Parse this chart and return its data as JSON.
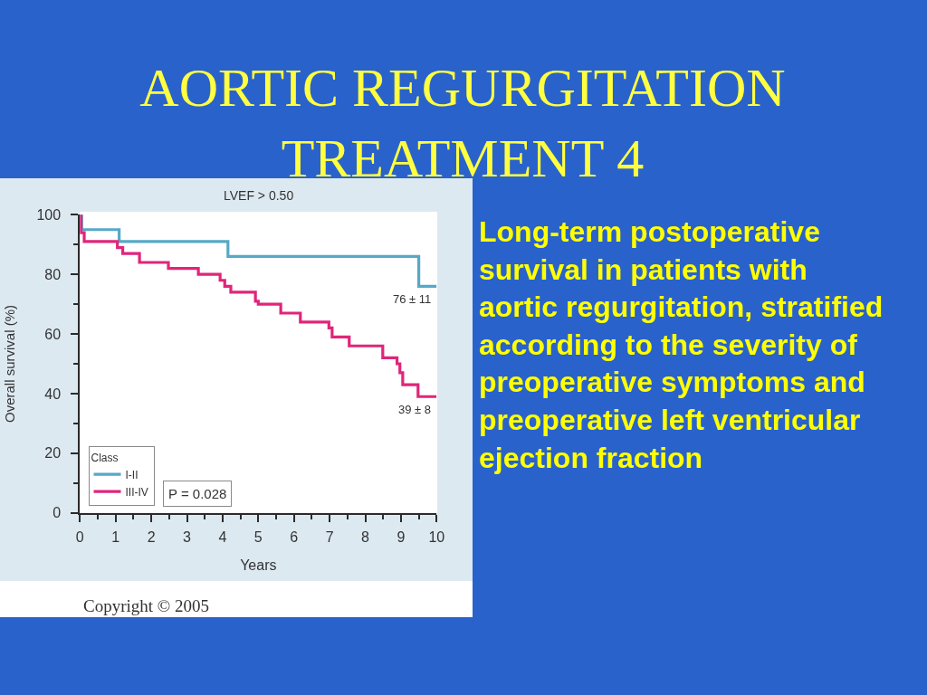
{
  "chart_data": {
    "type": "step",
    "title": "AORTIC REGURGITATION\nTREATMENT 4",
    "subtitle": "LVEF > 0.50",
    "xlabel": "Years",
    "ylabel": "Overall survival (%)",
    "legend_title": "Class",
    "series": [
      {
        "name": "I-II",
        "color": "#56a8c6",
        "x": [
          0,
          0.05,
          1.1,
          4.15,
          9.5,
          10
        ],
        "values": [
          100,
          95,
          91,
          86,
          76,
          76
        ]
      },
      {
        "name": "III-IV",
        "color": "#e0257a",
        "x": [
          0,
          0.03,
          0.12,
          1.05,
          1.2,
          1.67,
          2.48,
          3.32,
          3.93,
          4.06,
          4.23,
          4.92,
          5.0,
          5.63,
          6.18,
          6.98,
          7.07,
          7.55,
          8.49,
          8.89,
          8.97,
          9.05,
          9.48,
          10
        ],
        "values": [
          100,
          94,
          91,
          89,
          87,
          84,
          82,
          80,
          78,
          76,
          74,
          71,
          70,
          67,
          64,
          62,
          59,
          56,
          52,
          50,
          47,
          43,
          39,
          39
        ]
      }
    ],
    "xlim": [
      0,
      10
    ],
    "xticks": [
      0,
      {
        "value": 0.5,
        "label": null
      },
      1,
      {
        "value": 1.5,
        "label": null
      },
      2,
      {
        "value": 2.5,
        "label": null
      },
      3,
      {
        "value": 3.5,
        "label": null
      },
      4,
      {
        "value": 4.5,
        "label": null
      },
      5,
      {
        "value": 5.5,
        "label": null
      },
      6,
      {
        "value": 6.5,
        "label": null
      },
      7,
      {
        "value": 7.5,
        "label": null
      },
      8,
      {
        "value": 8.5,
        "label": null
      },
      9,
      {
        "value": 9.5,
        "label": null
      },
      10
    ],
    "ylim": [
      0,
      100
    ],
    "yticks": [
      0,
      {
        "value": 10,
        "label": null
      },
      20,
      {
        "value": 30,
        "label": null
      },
      40,
      {
        "value": 50,
        "label": null
      },
      60,
      {
        "value": 70,
        "label": null
      },
      80,
      {
        "value": 90,
        "label": null
      },
      100
    ],
    "legend": "bottom left",
    "annotations": [
      "P = 0.028",
      {
        "text": "76 ± 11",
        "x": 10,
        "y": 76
      },
      {
        "text": "39 ± 8",
        "x": 10,
        "y": 39
      },
      "Long-term postoperative\nsurvival in patients with\naortic regurgitation, stratified\naccording to the severity of\npreoperative symptoms and\npreoperative left ventricular\nejection fraction",
      "Copyright © 2005"
    ]
  }
}
